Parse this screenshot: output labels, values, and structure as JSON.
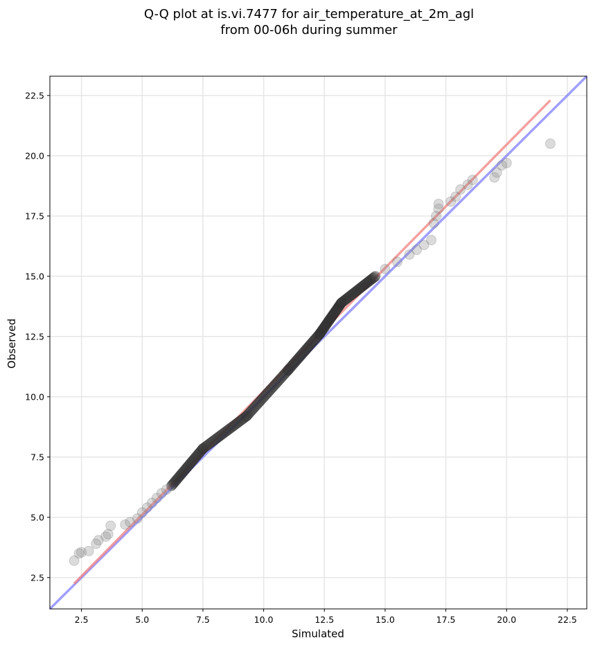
{
  "chart_data": {
    "type": "scatter",
    "title_line1": "Q-Q plot at is.vi.7477 for air_temperature_at_2m_agl",
    "title_line2": "from 00-06h during summer",
    "xlabel": "Simulated",
    "ylabel": "Observed",
    "xlim": [
      1.2,
      23.3
    ],
    "ylim": [
      1.2,
      23.3
    ],
    "xticks": [
      "2.5",
      "5.0",
      "7.5",
      "10.0",
      "12.5",
      "15.0",
      "17.5",
      "20.0",
      "22.5"
    ],
    "yticks": [
      "2.5",
      "5.0",
      "7.5",
      "10.0",
      "12.5",
      "15.0",
      "17.5",
      "20.0",
      "22.5"
    ],
    "grid": true,
    "colors": {
      "points": "#888888",
      "dense_points": "#333333",
      "fit_line": "#f08080",
      "identity_line": "#7f7fff"
    },
    "fit_line": {
      "x": [
        2.2,
        21.8
      ],
      "y": [
        2.25,
        22.3
      ]
    },
    "identity_line": {
      "x": [
        1.2,
        23.3
      ],
      "y": [
        1.2,
        23.3
      ]
    },
    "outlier_points": [
      {
        "x": 2.2,
        "y": 3.2
      },
      {
        "x": 2.4,
        "y": 3.5
      },
      {
        "x": 2.5,
        "y": 3.55
      },
      {
        "x": 2.8,
        "y": 3.6
      },
      {
        "x": 3.1,
        "y": 3.9
      },
      {
        "x": 3.2,
        "y": 4.05
      },
      {
        "x": 3.5,
        "y": 4.2
      },
      {
        "x": 3.6,
        "y": 4.3
      },
      {
        "x": 3.7,
        "y": 4.65
      },
      {
        "x": 4.3,
        "y": 4.7
      },
      {
        "x": 4.5,
        "y": 4.8
      },
      {
        "x": 4.8,
        "y": 4.95
      },
      {
        "x": 5.0,
        "y": 5.2
      },
      {
        "x": 5.2,
        "y": 5.4
      },
      {
        "x": 5.4,
        "y": 5.6
      },
      {
        "x": 5.6,
        "y": 5.8
      },
      {
        "x": 5.8,
        "y": 6.0
      },
      {
        "x": 6.0,
        "y": 6.15
      },
      {
        "x": 15.0,
        "y": 15.3
      },
      {
        "x": 15.5,
        "y": 15.6
      },
      {
        "x": 16.0,
        "y": 15.9
      },
      {
        "x": 16.3,
        "y": 16.1
      },
      {
        "x": 16.6,
        "y": 16.3
      },
      {
        "x": 16.9,
        "y": 16.5
      },
      {
        "x": 17.0,
        "y": 17.2
      },
      {
        "x": 17.1,
        "y": 17.5
      },
      {
        "x": 17.2,
        "y": 17.8
      },
      {
        "x": 17.2,
        "y": 18.0
      },
      {
        "x": 17.7,
        "y": 18.1
      },
      {
        "x": 17.9,
        "y": 18.3
      },
      {
        "x": 18.1,
        "y": 18.6
      },
      {
        "x": 18.4,
        "y": 18.8
      },
      {
        "x": 18.6,
        "y": 19.0
      },
      {
        "x": 19.5,
        "y": 19.1
      },
      {
        "x": 19.6,
        "y": 19.3
      },
      {
        "x": 19.8,
        "y": 19.6
      },
      {
        "x": 20.0,
        "y": 19.7
      },
      {
        "x": 21.8,
        "y": 20.5
      }
    ],
    "dense_segments": [
      {
        "x0": 6.2,
        "y0": 6.3,
        "x1": 7.5,
        "y1": 7.85
      },
      {
        "x0": 7.5,
        "y0": 7.85,
        "x1": 9.3,
        "y1": 9.2
      },
      {
        "x0": 9.3,
        "y0": 9.2,
        "x1": 11.0,
        "y1": 11.1
      },
      {
        "x0": 11.0,
        "y0": 11.1,
        "x1": 12.3,
        "y1": 12.6
      },
      {
        "x0": 12.3,
        "y0": 12.6,
        "x1": 13.2,
        "y1": 13.9
      },
      {
        "x0": 13.2,
        "y0": 13.9,
        "x1": 14.6,
        "y1": 15.0
      }
    ]
  }
}
